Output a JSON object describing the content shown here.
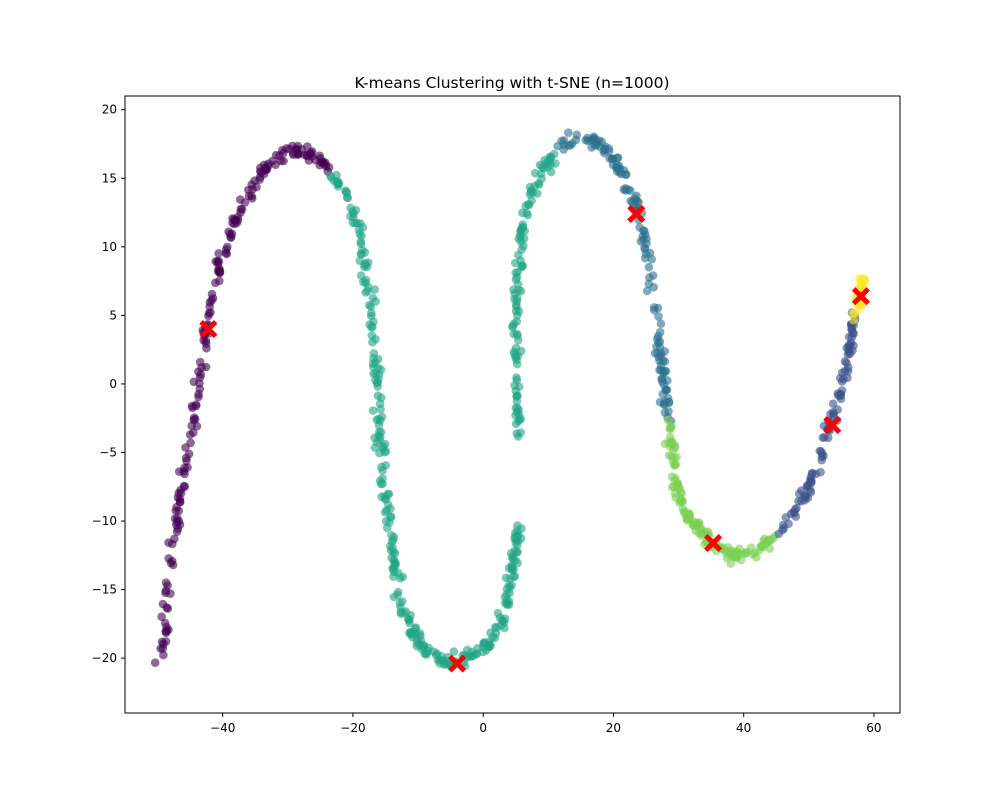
{
  "chart_data": {
    "type": "scatter",
    "title": "K-means Clustering with t-SNE (n=1000)",
    "xlabel": "",
    "ylabel": "",
    "xlim": [
      -55,
      64
    ],
    "ylim": [
      -24,
      21
    ],
    "xticks": [
      -40,
      -20,
      0,
      20,
      40,
      60
    ],
    "yticks": [
      -20,
      -15,
      -10,
      -5,
      0,
      5,
      10,
      15,
      20
    ],
    "ytick_labels": [
      "−20",
      "−15",
      "−10",
      "−5",
      "0",
      "5",
      "10",
      "15",
      "20"
    ],
    "xtick_labels": [
      "−40",
      "−20",
      "0",
      "20",
      "40",
      "60"
    ],
    "n_points": 1000,
    "point_alpha": 0.6,
    "grid": false,
    "legend": "none",
    "clusters": [
      {
        "color": "#440154",
        "count": 200,
        "path": [
          [
            -50,
            -19.8
          ],
          [
            -48.8,
            -18.5
          ],
          [
            -48.5,
            -15
          ],
          [
            -47.8,
            -12
          ],
          [
            -46.8,
            -9
          ],
          [
            -45.8,
            -6
          ],
          [
            -44.6,
            -3.5
          ],
          [
            -43.8,
            0
          ],
          [
            -42.6,
            3.5
          ],
          [
            -41.5,
            6
          ],
          [
            -40,
            9
          ],
          [
            -38.5,
            11.5
          ],
          [
            -36.5,
            13.5
          ],
          [
            -34.5,
            15
          ],
          [
            -32,
            16.4
          ],
          [
            -29,
            17
          ],
          [
            -26,
            16.8
          ],
          [
            -23.5,
            15.5
          ]
        ]
      },
      {
        "color": "#21a585",
        "count": 290,
        "path": [
          [
            -23,
            15
          ],
          [
            -20.5,
            13.5
          ],
          [
            -19,
            11
          ],
          [
            -18,
            8
          ],
          [
            -17,
            5
          ],
          [
            -16.5,
            2
          ],
          [
            -16.2,
            -1
          ],
          [
            -15.8,
            -4
          ],
          [
            -15.5,
            -7
          ],
          [
            -14.5,
            -10
          ],
          [
            -13.5,
            -13
          ],
          [
            -13,
            -15.5
          ],
          [
            -11,
            -18
          ],
          [
            -8,
            -19.8
          ],
          [
            -5,
            -20.3
          ],
          [
            -2,
            -20
          ],
          [
            0.5,
            -19
          ],
          [
            2.5,
            -17.5
          ],
          [
            4,
            -15
          ],
          [
            5,
            -12
          ],
          [
            5.3,
            -10
          ]
        ]
      },
      {
        "color": "#21a585",
        "count": 110,
        "path": [
          [
            5.3,
            -4
          ],
          [
            5.1,
            0
          ],
          [
            5,
            4
          ],
          [
            5.3,
            8
          ],
          [
            6,
            11
          ],
          [
            7.2,
            13.5
          ],
          [
            9,
            15.5
          ],
          [
            11,
            17
          ]
        ]
      },
      {
        "color": "#2c718e",
        "count": 140,
        "path": [
          [
            11.5,
            17.2
          ],
          [
            14,
            18
          ],
          [
            16.5,
            17.8
          ],
          [
            19,
            17
          ],
          [
            21,
            15.5
          ],
          [
            23,
            13.5
          ],
          [
            24.5,
            11.5
          ],
          [
            25.3,
            9
          ],
          [
            26.3,
            6
          ],
          [
            27,
            3
          ],
          [
            27.7,
            0
          ],
          [
            28.3,
            -2.5
          ]
        ]
      },
      {
        "color": "#7ad151",
        "count": 130,
        "path": [
          [
            28.7,
            -3
          ],
          [
            29.3,
            -6
          ],
          [
            30,
            -8.5
          ],
          [
            32,
            -10
          ],
          [
            34.5,
            -11.5
          ],
          [
            37,
            -12.3
          ],
          [
            40,
            -12.5
          ],
          [
            42.5,
            -12
          ],
          [
            45,
            -11
          ]
        ]
      },
      {
        "color": "#3b528b",
        "count": 100,
        "path": [
          [
            45.5,
            -11
          ],
          [
            47.5,
            -9.5
          ],
          [
            49.5,
            -8
          ],
          [
            51.5,
            -6
          ],
          [
            53,
            -3.5
          ],
          [
            54.5,
            -1
          ],
          [
            55.5,
            1
          ],
          [
            56.5,
            3.5
          ],
          [
            57,
            5
          ]
        ]
      },
      {
        "color": "#fde725",
        "count": 30,
        "path": [
          [
            57.2,
            5
          ],
          [
            57.6,
            6
          ],
          [
            58,
            7
          ],
          [
            58.2,
            7.5
          ]
        ]
      }
    ],
    "centroids": {
      "color": "#ff0000",
      "marker": "X",
      "points": [
        [
          -42.2,
          4
        ],
        [
          -4,
          -20.4
        ],
        [
          23.5,
          12.4
        ],
        [
          35.3,
          -11.6
        ],
        [
          53.6,
          -3
        ],
        [
          58,
          6.4
        ]
      ]
    }
  }
}
